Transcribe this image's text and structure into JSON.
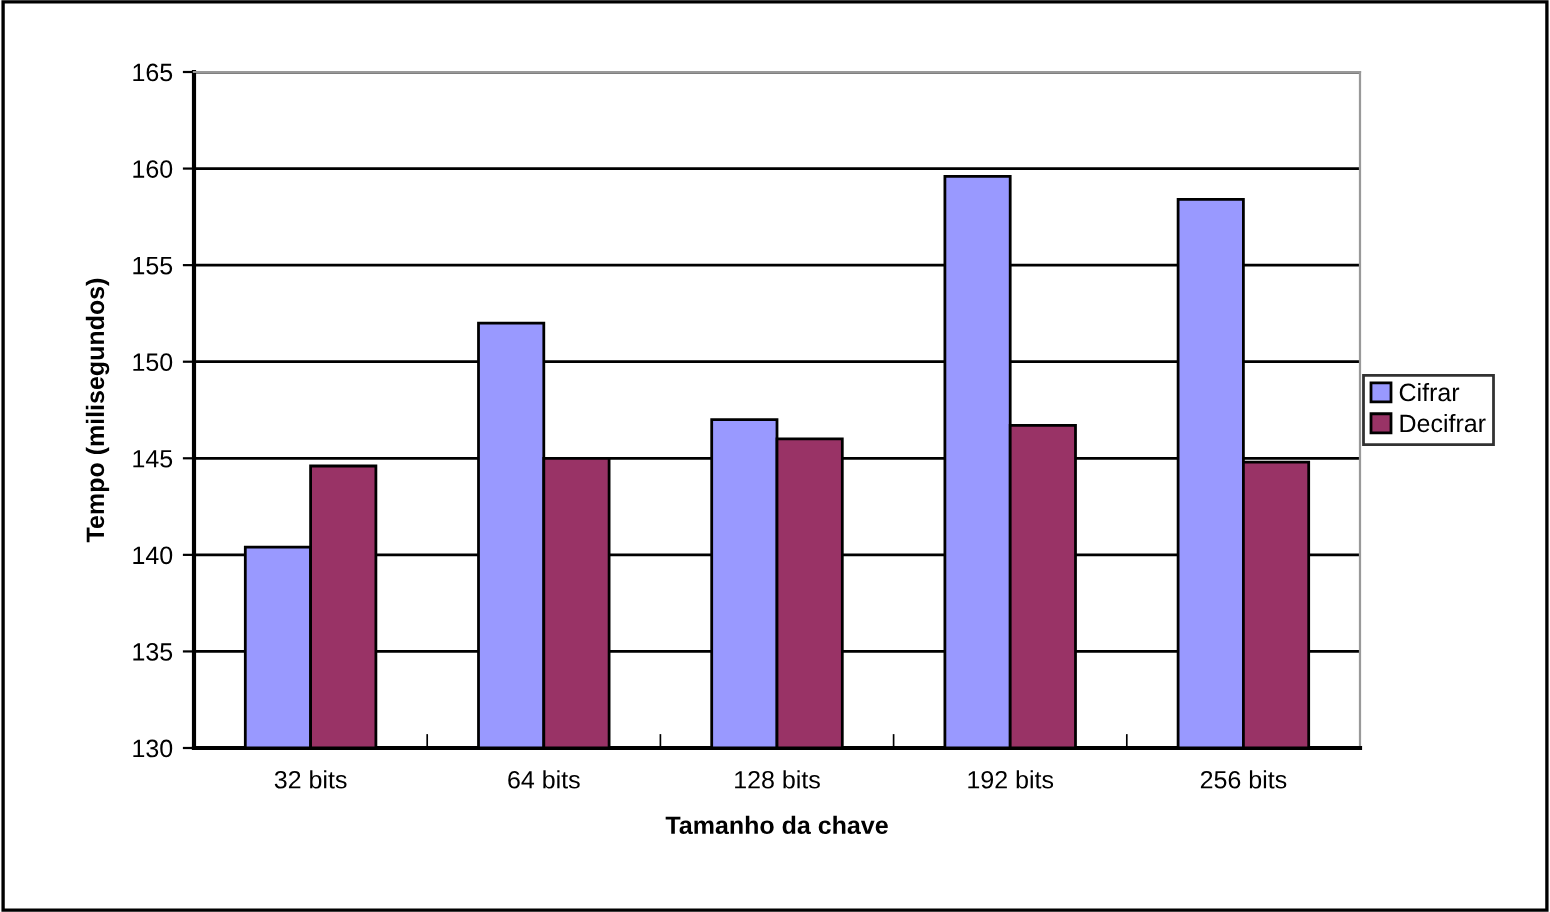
{
  "chart_data": {
    "type": "bar",
    "xlabel": "Tamanho da chave",
    "ylabel": "Tempo (milisegundos)",
    "categories": [
      "32 bits",
      "64 bits",
      "128 bits",
      "192 bits",
      "256 bits"
    ],
    "series": [
      {
        "name": "Cifrar",
        "color": "#9999ff",
        "values": [
          140.4,
          152.0,
          147.0,
          159.6,
          158.4
        ]
      },
      {
        "name": "Decifrar",
        "color": "#993366",
        "values": [
          144.6,
          145.0,
          146.0,
          146.7,
          144.8
        ]
      }
    ],
    "ylim": [
      130,
      165
    ],
    "yticks": [
      130,
      135,
      140,
      145,
      150,
      155,
      160,
      165
    ],
    "grid": "y",
    "legend": "right"
  }
}
